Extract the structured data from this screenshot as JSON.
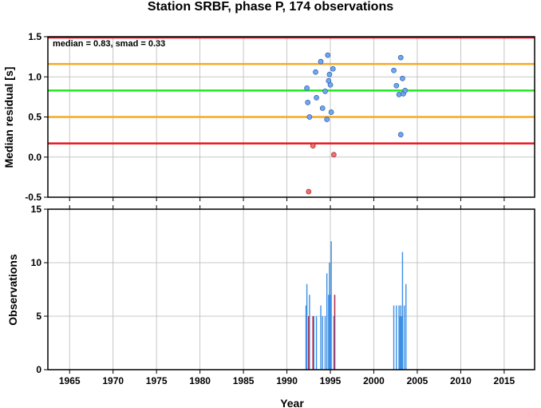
{
  "title": "Station SRBF, phase P, 174 observations",
  "colors": {
    "red": "#e8161e",
    "orange": "#f6a924",
    "green": "#1ee81e",
    "blue_point": "#6fa8ef",
    "red_point": "#f26e6e",
    "blue_bar": "#3a8ee6",
    "red_bar": "#b03050",
    "grid": "#b8b8b8"
  },
  "chart_data": [
    {
      "type": "scatter",
      "ylabel": "Median residual [s]",
      "xlim": [
        1962.5,
        2018.5
      ],
      "ylim": [
        -0.5,
        1.5
      ],
      "yticks": [
        -0.5,
        0.0,
        0.5,
        1.0,
        1.5
      ],
      "ytick_labels": [
        "-0.5",
        "0.0",
        "0.5",
        "1.0",
        "1.5"
      ],
      "annotation": "median = 0.83, smad = 0.33",
      "hlines": [
        {
          "y": 1.49,
          "color": "red"
        },
        {
          "y": 1.16,
          "color": "orange"
        },
        {
          "y": 0.83,
          "color": "green"
        },
        {
          "y": 0.5,
          "color": "orange"
        },
        {
          "y": 0.17,
          "color": "red"
        }
      ],
      "points_in": [
        [
          1992.3,
          0.86
        ],
        [
          1992.4,
          0.68
        ],
        [
          1992.6,
          0.5
        ],
        [
          1993.3,
          1.06
        ],
        [
          1993.4,
          0.74
        ],
        [
          1993.9,
          1.19
        ],
        [
          1994.1,
          0.61
        ],
        [
          1994.4,
          0.82
        ],
        [
          1994.6,
          0.47
        ],
        [
          1994.7,
          1.27
        ],
        [
          1994.8,
          0.95
        ],
        [
          1994.9,
          1.03
        ],
        [
          1995.0,
          0.9
        ],
        [
          1995.1,
          0.56
        ],
        [
          1995.3,
          1.1
        ],
        [
          2002.3,
          1.08
        ],
        [
          2002.6,
          0.89
        ],
        [
          2002.9,
          0.78
        ],
        [
          2003.1,
          1.24
        ],
        [
          2003.1,
          0.28
        ],
        [
          2003.3,
          0.98
        ],
        [
          2003.4,
          0.79
        ],
        [
          2003.6,
          0.83
        ]
      ],
      "points_out": [
        [
          1992.5,
          -0.43
        ],
        [
          1993.0,
          0.14
        ],
        [
          1995.4,
          0.03
        ]
      ]
    },
    {
      "type": "bar",
      "xlabel": "Year",
      "ylabel": "Observations",
      "xlim": [
        1962.5,
        2018.5
      ],
      "ylim": [
        0,
        15
      ],
      "yticks": [
        0,
        5,
        10,
        15
      ],
      "ytick_labels": [
        "0",
        "5",
        "10",
        "15"
      ],
      "xticks": [
        1965,
        1970,
        1975,
        1980,
        1985,
        1990,
        1995,
        2000,
        2005,
        2010,
        2015
      ],
      "xtick_labels": [
        "1965",
        "1970",
        "1975",
        "1980",
        "1985",
        "1990",
        "1995",
        "2000",
        "2005",
        "2010",
        "2015"
      ],
      "bars_blue": [
        [
          1992.2,
          6
        ],
        [
          1992.3,
          8
        ],
        [
          1992.6,
          7
        ],
        [
          1993.1,
          5
        ],
        [
          1993.4,
          5
        ],
        [
          1993.9,
          6
        ],
        [
          1994.1,
          5
        ],
        [
          1994.4,
          5
        ],
        [
          1994.6,
          9
        ],
        [
          1994.8,
          7
        ],
        [
          1994.9,
          10
        ],
        [
          1995.0,
          7
        ],
        [
          1995.1,
          12
        ],
        [
          1995.4,
          5
        ],
        [
          2002.3,
          6
        ],
        [
          2002.6,
          6
        ],
        [
          2002.9,
          6
        ],
        [
          2003.0,
          5
        ],
        [
          2003.1,
          6
        ],
        [
          2003.2,
          5
        ],
        [
          2003.3,
          11
        ],
        [
          2003.5,
          6
        ],
        [
          2003.7,
          8
        ]
      ],
      "bars_red": [
        [
          1992.5,
          5
        ],
        [
          1993.0,
          5
        ],
        [
          1995.5,
          7
        ]
      ]
    }
  ]
}
